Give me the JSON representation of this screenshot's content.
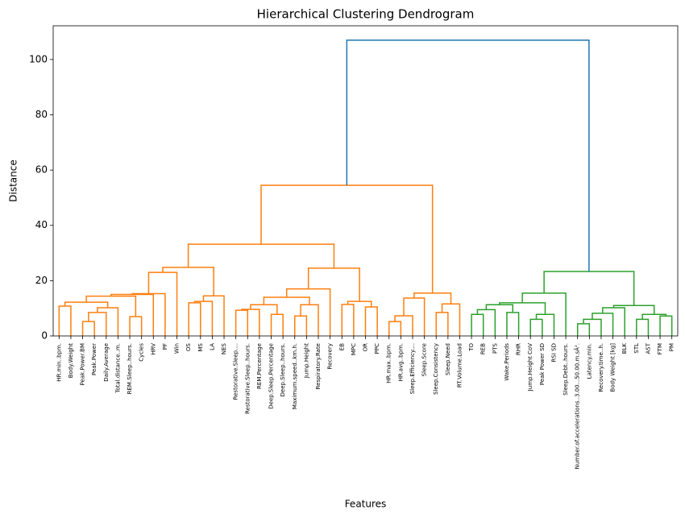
{
  "chart_data": {
    "type": "dendrogram",
    "title": "Hierarchical Clustering Dendrogram",
    "xlabel": "Features",
    "ylabel": "Distance",
    "ylim": [
      0,
      112.2
    ],
    "yticks": [
      0,
      20,
      40,
      60,
      80,
      100
    ],
    "leaves": [
      "HR.min..bpm.",
      "Body.Weight",
      "Peak.Power.BM",
      "Peak.Power",
      "Daily.Average",
      "Total.distance..m.",
      "REM.Sleep..hours.",
      "Cycles",
      "HRV",
      "PF",
      "Win",
      "OS",
      "MS",
      "LA",
      "NES",
      "Restorative.Sleep....",
      "Restorative.Sleep..hours.",
      "REM.Percentage",
      "Deep.Sleep.Percentage",
      "Deep.Sleep..hours.",
      "Maximum.speed..km.h.",
      "Jump.Height",
      "Respiratory.Rate",
      "Recovery",
      "EB",
      "MPC",
      "OR",
      "PPC",
      "HR.max..bpm.",
      "HR.avg..bpm.",
      "Sleep.Efficiency....",
      "Sleep.Score",
      "Sleep.Consistency",
      "Sleep.Need",
      "RT.Volume.Load",
      "TO",
      "REB",
      "PTS",
      "Wake.Periods",
      "RHR",
      "Jump.Height CoV",
      "Peak Power SD",
      "RSI SD",
      "Sleep.Debt..hours.",
      "Number.of.accelerations..3.00...50.00.m.sÂ².",
      "Latency.min.",
      "Recovery.time..h.",
      "Body Weight [kg]",
      "BLK",
      "STL",
      "AST",
      "FTM",
      "PM"
    ],
    "links": [
      {
        "children": [
          2,
          3
        ],
        "height": 5.2,
        "color": "#ff7f0e"
      },
      {
        "children": [
          53,
          4
        ],
        "height": 8.5,
        "color": "#ff7f0e"
      },
      {
        "children": [
          54,
          5
        ],
        "height": 10.2,
        "color": "#ff7f0e"
      },
      {
        "children": [
          0,
          1
        ],
        "height": 10.8,
        "color": "#ff7f0e"
      },
      {
        "children": [
          56,
          55
        ],
        "height": 12.2,
        "color": "#ff7f0e"
      },
      {
        "children": [
          6,
          7
        ],
        "height": 7.0,
        "color": "#ff7f0e"
      },
      {
        "children": [
          57,
          58
        ],
        "height": 14.4,
        "color": "#ff7f0e"
      },
      {
        "children": [
          59,
          8
        ],
        "height": 15.0,
        "color": "#ff7f0e"
      },
      {
        "children": [
          60,
          9
        ],
        "height": 15.3,
        "color": "#ff7f0e"
      },
      {
        "children": [
          61,
          10
        ],
        "height": 23.0,
        "color": "#ff7f0e"
      },
      {
        "children": [
          11,
          12
        ],
        "height": 12.0,
        "color": "#ff7f0e"
      },
      {
        "children": [
          63,
          13
        ],
        "height": 12.5,
        "color": "#ff7f0e"
      },
      {
        "children": [
          64,
          14
        ],
        "height": 14.5,
        "color": "#ff7f0e"
      },
      {
        "children": [
          62,
          65
        ],
        "height": 24.8,
        "color": "#ff7f0e"
      },
      {
        "children": [
          15,
          16
        ],
        "height": 9.3,
        "color": "#ff7f0e"
      },
      {
        "children": [
          67,
          17
        ],
        "height": 9.6,
        "color": "#ff7f0e"
      },
      {
        "children": [
          18,
          19
        ],
        "height": 7.8,
        "color": "#ff7f0e"
      },
      {
        "children": [
          68,
          69
        ],
        "height": 11.3,
        "color": "#ff7f0e"
      },
      {
        "children": [
          20,
          21
        ],
        "height": 7.2,
        "color": "#ff7f0e"
      },
      {
        "children": [
          71,
          22
        ],
        "height": 11.3,
        "color": "#ff7f0e"
      },
      {
        "children": [
          70,
          72
        ],
        "height": 14.0,
        "color": "#ff7f0e"
      },
      {
        "children": [
          73,
          23
        ],
        "height": 17.0,
        "color": "#ff7f0e"
      },
      {
        "children": [
          24,
          25
        ],
        "height": 11.4,
        "color": "#ff7f0e"
      },
      {
        "children": [
          26,
          27
        ],
        "height": 10.5,
        "color": "#ff7f0e"
      },
      {
        "children": [
          75,
          76
        ],
        "height": 12.5,
        "color": "#ff7f0e"
      },
      {
        "children": [
          74,
          77
        ],
        "height": 24.5,
        "color": "#ff7f0e"
      },
      {
        "children": [
          66,
          78
        ],
        "height": 33.2,
        "color": "#ff7f0e"
      },
      {
        "children": [
          28,
          29
        ],
        "height": 5.2,
        "color": "#ff7f0e"
      },
      {
        "children": [
          80,
          30
        ],
        "height": 7.3,
        "color": "#ff7f0e"
      },
      {
        "children": [
          81,
          31
        ],
        "height": 13.7,
        "color": "#ff7f0e"
      },
      {
        "children": [
          32,
          33
        ],
        "height": 8.5,
        "color": "#ff7f0e"
      },
      {
        "children": [
          83,
          34
        ],
        "height": 11.6,
        "color": "#ff7f0e"
      },
      {
        "children": [
          82,
          84
        ],
        "height": 15.5,
        "color": "#ff7f0e"
      },
      {
        "children": [
          79,
          85
        ],
        "height": 54.5,
        "color": "#ff7f0e"
      },
      {
        "children": [
          35,
          36
        ],
        "height": 7.8,
        "color": "#2ca02c"
      },
      {
        "children": [
          87,
          37
        ],
        "height": 9.5,
        "color": "#2ca02c"
      },
      {
        "children": [
          38,
          39
        ],
        "height": 8.5,
        "color": "#2ca02c"
      },
      {
        "children": [
          88,
          89
        ],
        "height": 11.3,
        "color": "#2ca02c"
      },
      {
        "children": [
          40,
          41
        ],
        "height": 6.0,
        "color": "#2ca02c"
      },
      {
        "children": [
          91,
          42
        ],
        "height": 7.8,
        "color": "#2ca02c"
      },
      {
        "children": [
          90,
          92
        ],
        "height": 12.0,
        "color": "#2ca02c"
      },
      {
        "children": [
          93,
          43
        ],
        "height": 15.5,
        "color": "#2ca02c"
      },
      {
        "children": [
          44,
          45
        ],
        "height": 4.4,
        "color": "#2ca02c"
      },
      {
        "children": [
          95,
          46
        ],
        "height": 6.0,
        "color": "#2ca02c"
      },
      {
        "children": [
          96,
          47
        ],
        "height": 8.2,
        "color": "#2ca02c"
      },
      {
        "children": [
          97,
          48
        ],
        "height": 10.2,
        "color": "#2ca02c"
      },
      {
        "children": [
          49,
          50
        ],
        "height": 6.0,
        "color": "#2ca02c"
      },
      {
        "children": [
          51,
          52
        ],
        "height": 7.2,
        "color": "#2ca02c"
      },
      {
        "children": [
          99,
          100
        ],
        "height": 7.8,
        "color": "#2ca02c"
      },
      {
        "children": [
          98,
          101
        ],
        "height": 11.0,
        "color": "#2ca02c"
      },
      {
        "children": [
          94,
          102
        ],
        "height": 23.3,
        "color": "#2ca02c"
      },
      {
        "children": [
          86,
          103
        ],
        "height": 107.0,
        "color": "#1f77b4"
      }
    ]
  }
}
